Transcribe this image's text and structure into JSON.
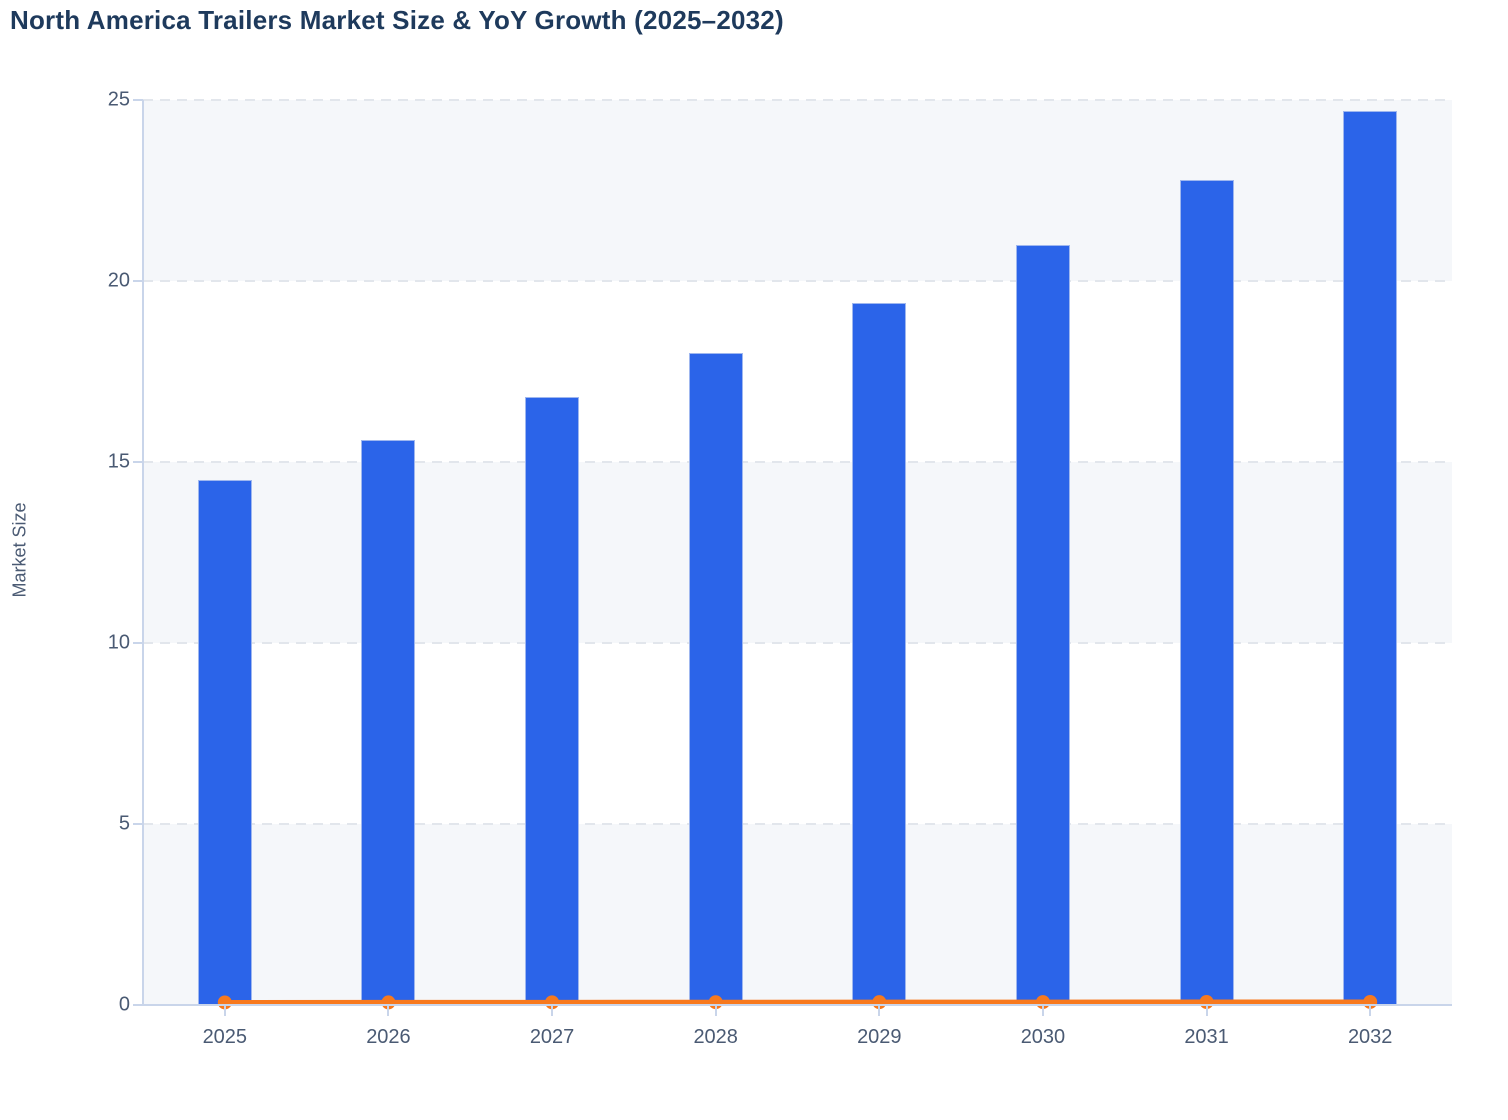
{
  "chart_data": {
    "type": "bar",
    "title": "North America Trailers Market Size & YoY Growth (2025–2032)",
    "ylabel": "Market Size",
    "xlabel": "",
    "categories": [
      "2025",
      "2026",
      "2027",
      "2028",
      "2029",
      "2030",
      "2031",
      "2032"
    ],
    "series": [
      {
        "name": "Market Size",
        "type": "bar",
        "color": "#2b64e9",
        "values": [
          14.5,
          15.6,
          16.8,
          18.0,
          19.4,
          21.0,
          22.8,
          24.7
        ]
      },
      {
        "name": "YoY Growth",
        "type": "line",
        "color": "#f7791e",
        "values": [
          0.07,
          0.072,
          0.074,
          0.077,
          0.079,
          0.081,
          0.083,
          0.084
        ]
      }
    ],
    "ylim": [
      0,
      25
    ],
    "yticks": [
      0,
      5,
      10,
      15,
      20,
      25
    ],
    "grid": "horizontal-dashed",
    "plot_bands": "alternating-light",
    "legend": "none"
  },
  "colors": {
    "bar": "#2b64e9",
    "line": "#f7791e",
    "title_text": "#1e3a5c",
    "axis_text": "#4a5a73",
    "band": "#f5f7fa",
    "gridline": "#e2e6ec",
    "axis_line": "#c9d5ea",
    "background": "#ffffff"
  }
}
